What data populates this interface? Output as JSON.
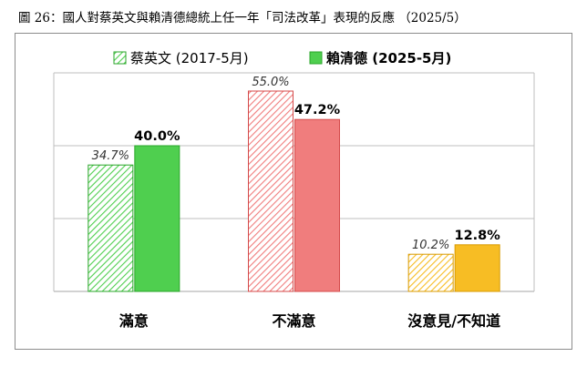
{
  "figure_title": "圖 26：國人對蔡英文與賴清德總統上任一年「司法改革」表現的反應 （2025/5）",
  "colors": {
    "green": "#4fcf4f",
    "green_stroke": "#2aa52a",
    "red": "#f07d7d",
    "red_stroke": "#d44a4a",
    "yellow": "#f7bd24",
    "yellow_stroke": "#d89a00",
    "grid": "#bfbfbf"
  },
  "chart_data": {
    "type": "bar",
    "categories": [
      "滿意",
      "不滿意",
      "沒意見/不知道"
    ],
    "series": [
      {
        "name": "蔡英文 (2017-5月)",
        "pattern": "hatched",
        "values": [
          34.7,
          55.0,
          10.2
        ]
      },
      {
        "name": "賴清德 (2025-5月)",
        "pattern": "solid",
        "values": [
          40.0,
          47.2,
          12.8
        ]
      }
    ],
    "value_labels": [
      [
        "34.7%",
        "55.0%",
        "10.2%"
      ],
      [
        "40.0%",
        "47.2%",
        "12.8%"
      ]
    ],
    "ylim": [
      0,
      60
    ],
    "grid": true,
    "legend_position": "top-center"
  }
}
